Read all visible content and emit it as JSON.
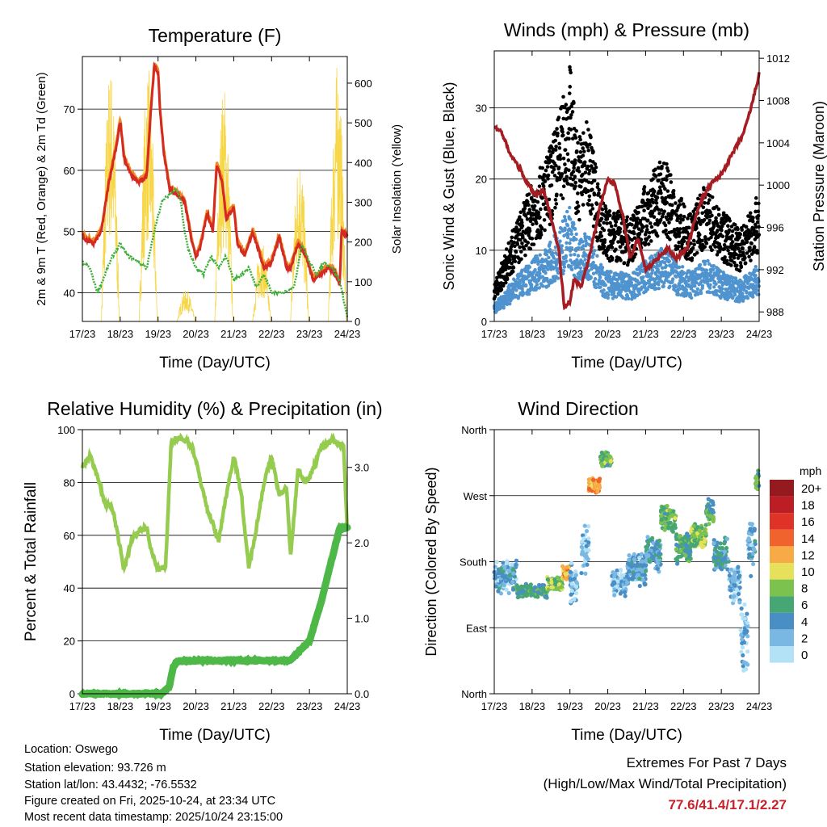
{
  "footer": {
    "location": "Location: Oswego",
    "elevation": "Station elevation: 93.726 m",
    "latlon": "Station lat/lon: 43.4432; -76.5532",
    "created": "Figure created on Fri, 2025-10-24, at 23:34 UTC",
    "recent": "Most recent data timestamp: 2025/10/24 23:15:00",
    "extremes_title": "Extremes For Past 7 Days",
    "extremes_sub": "(High/Low/Max Wind/Total Precipitation)",
    "extremes_values": "77.6/41.4/17.1/2.27",
    "extremes_color": "#c8232c"
  },
  "chart_data": [
    {
      "type": "line",
      "title": "Temperature (F)",
      "xlabel": "Time (Day/UTC)",
      "ylabel": "2m & 9m T (Red, Orange) & 2m Td (Green)",
      "ylabel_right": "Solar Insolation (Yellow)",
      "xticks": [
        "17/23",
        "18/23",
        "19/23",
        "20/23",
        "21/23",
        "22/23",
        "23/23",
        "24/23"
      ],
      "xlim": [
        0,
        7
      ],
      "ylim": [
        35.3,
        78.6
      ],
      "yticks": [
        40,
        50,
        60,
        70
      ],
      "ylim_right": [
        0,
        667
      ],
      "yticks_right": [
        0,
        100,
        200,
        300,
        400,
        500,
        600
      ],
      "series": [
        {
          "name": "2m T",
          "color": "#d42a22",
          "points": [
            [
              0,
              49
            ],
            [
              0.3,
              48
            ],
            [
              0.5,
              50
            ],
            [
              0.7,
              58
            ],
            [
              0.9,
              64
            ],
            [
              1.0,
              68
            ],
            [
              1.1,
              62
            ],
            [
              1.3,
              59
            ],
            [
              1.5,
              58
            ],
            [
              1.7,
              59
            ],
            [
              1.8,
              69
            ],
            [
              1.9,
              77
            ],
            [
              2.0,
              76
            ],
            [
              2.05,
              70
            ],
            [
              2.15,
              63
            ],
            [
              2.3,
              57
            ],
            [
              2.5,
              56
            ],
            [
              2.7,
              55
            ],
            [
              2.9,
              48
            ],
            [
              3.0,
              46
            ],
            [
              3.1,
              47
            ],
            [
              3.3,
              53
            ],
            [
              3.45,
              50
            ],
            [
              3.55,
              61
            ],
            [
              3.7,
              58
            ],
            [
              3.8,
              52
            ],
            [
              4.0,
              54
            ],
            [
              4.1,
              48
            ],
            [
              4.3,
              46
            ],
            [
              4.5,
              50
            ],
            [
              4.6,
              48
            ],
            [
              4.8,
              44
            ],
            [
              5.0,
              45
            ],
            [
              5.2,
              49
            ],
            [
              5.4,
              44
            ],
            [
              5.5,
              44
            ],
            [
              5.7,
              48
            ],
            [
              5.9,
              46
            ],
            [
              6.1,
              42
            ],
            [
              6.3,
              43
            ],
            [
              6.5,
              44
            ],
            [
              6.7,
              43
            ],
            [
              6.8,
              41
            ],
            [
              6.85,
              50
            ],
            [
              7,
              49
            ]
          ]
        },
        {
          "name": "9m T",
          "color": "#f08a24",
          "offset": 0.5
        },
        {
          "name": "2m Td",
          "color": "#3fae3a",
          "points": [
            [
              0,
              45
            ],
            [
              0.2,
              44
            ],
            [
              0.4,
              40
            ],
            [
              0.6,
              43
            ],
            [
              0.8,
              46
            ],
            [
              1.0,
              48
            ],
            [
              1.2,
              46
            ],
            [
              1.5,
              45
            ],
            [
              1.7,
              44
            ],
            [
              1.9,
              50
            ],
            [
              2.1,
              55
            ],
            [
              2.3,
              56
            ],
            [
              2.5,
              57
            ],
            [
              2.6,
              55
            ],
            [
              2.7,
              50
            ],
            [
              2.8,
              47
            ],
            [
              3.0,
              44
            ],
            [
              3.2,
              43
            ],
            [
              3.4,
              46
            ],
            [
              3.6,
              44
            ],
            [
              3.8,
              46
            ],
            [
              4.0,
              42
            ],
            [
              4.2,
              43
            ],
            [
              4.4,
              44
            ],
            [
              4.6,
              41
            ],
            [
              4.8,
              43
            ],
            [
              5.0,
              40
            ],
            [
              5.3,
              40
            ],
            [
              5.6,
              41
            ],
            [
              5.8,
              48
            ],
            [
              6.0,
              45
            ],
            [
              6.2,
              43
            ],
            [
              6.4,
              45
            ],
            [
              6.6,
              44
            ],
            [
              6.8,
              42
            ],
            [
              7,
              36
            ]
          ]
        },
        {
          "name": "Solar Insolation",
          "color": "#f7d648",
          "axis": "right",
          "daily_peaks": [
            650,
            640,
            80,
            600,
            200,
            430,
            650
          ]
        }
      ]
    },
    {
      "type": "scatter",
      "title": "Winds (mph) & Pressure (mb)",
      "xlabel": "Time (Day/UTC)",
      "ylabel": "Sonic Wind & Gust (Blue, Black)",
      "ylabel_right": "Station Pressure (Maroon)",
      "xticks": [
        "17/23",
        "18/23",
        "19/23",
        "20/23",
        "21/23",
        "22/23",
        "23/23",
        "24/23"
      ],
      "xlim": [
        0,
        7
      ],
      "ylim": [
        0,
        38
      ],
      "yticks": [
        0,
        10,
        20,
        30
      ],
      "ylim_right": [
        987.1,
        1012.7
      ],
      "yticks_right": [
        988,
        992,
        996,
        1000,
        1004,
        1008,
        1012
      ],
      "series": [
        {
          "name": "Gust",
          "color": "#000000",
          "points": [
            [
              0,
              4
            ],
            [
              0.5,
              10
            ],
            [
              1,
              15
            ],
            [
              1.4,
              18
            ],
            [
              1.8,
              24
            ],
            [
              2.0,
              28
            ],
            [
              2.2,
              20
            ],
            [
              2.5,
              22
            ],
            [
              2.8,
              14
            ],
            [
              3.0,
              12
            ],
            [
              3.3,
              12
            ],
            [
              3.6,
              11
            ],
            [
              4.0,
              15
            ],
            [
              4.5,
              18
            ],
            [
              4.8,
              14
            ],
            [
              5.2,
              12
            ],
            [
              5.6,
              15
            ],
            [
              6.0,
              12
            ],
            [
              6.5,
              10
            ],
            [
              7,
              14
            ]
          ]
        },
        {
          "name": "Sonic Wind",
          "color": "#4f93cf",
          "ratio": 0.45
        },
        {
          "name": "Station Pressure",
          "color": "#a51d22",
          "axis": "right",
          "points": [
            [
              0,
              1005.5
            ],
            [
              0.2,
              1005
            ],
            [
              0.4,
              1003
            ],
            [
              0.6,
              1002
            ],
            [
              0.9,
              1000
            ],
            [
              1.1,
              999
            ],
            [
              1.3,
              999.5
            ],
            [
              1.5,
              997
            ],
            [
              1.7,
              994
            ],
            [
              1.85,
              988.5
            ],
            [
              2.0,
              989
            ],
            [
              2.1,
              991
            ],
            [
              2.3,
              990.5
            ],
            [
              2.5,
              993
            ],
            [
              2.8,
              998
            ],
            [
              3.0,
              1000.5
            ],
            [
              3.2,
              1000
            ],
            [
              3.4,
              997
            ],
            [
              3.6,
              993
            ],
            [
              3.8,
              995
            ],
            [
              4.0,
              992
            ],
            [
              4.3,
              993
            ],
            [
              4.6,
              994
            ],
            [
              4.8,
              993
            ],
            [
              5.1,
              994
            ],
            [
              5.4,
              998
            ],
            [
              5.7,
              1000
            ],
            [
              6.0,
              1001
            ],
            [
              6.3,
              1003
            ],
            [
              6.6,
              1005
            ],
            [
              6.8,
              1007.5
            ],
            [
              7,
              1010.5
            ]
          ]
        }
      ]
    },
    {
      "type": "line",
      "title": "Relative Humidity (%) & Precipitation (in)",
      "xlabel": "Time (Day/UTC)",
      "ylabel": "Percent & Total Rainfall",
      "xticks": [
        "17/23",
        "18/23",
        "19/23",
        "20/23",
        "21/23",
        "22/23",
        "23/23",
        "24/23"
      ],
      "xlim": [
        0,
        7
      ],
      "ylim": [
        0,
        100
      ],
      "yticks": [
        0,
        20,
        40,
        60,
        80,
        100
      ],
      "ylim_right": [
        0,
        3.5
      ],
      "yticks_right": [
        "0.0",
        "1.0",
        "2.0",
        "3.0"
      ],
      "series": [
        {
          "name": "Relative Humidity",
          "color": "#95cb4f",
          "points": [
            [
              0,
              86
            ],
            [
              0.2,
              90
            ],
            [
              0.4,
              82
            ],
            [
              0.6,
              72
            ],
            [
              0.8,
              70
            ],
            [
              1.0,
              55
            ],
            [
              1.1,
              47
            ],
            [
              1.3,
              58
            ],
            [
              1.5,
              62
            ],
            [
              1.7,
              63
            ],
            [
              1.8,
              55
            ],
            [
              2.0,
              47
            ],
            [
              2.2,
              48
            ],
            [
              2.35,
              96
            ],
            [
              2.6,
              97
            ],
            [
              2.9,
              94
            ],
            [
              3.1,
              82
            ],
            [
              3.3,
              70
            ],
            [
              3.5,
              62
            ],
            [
              3.6,
              58
            ],
            [
              3.8,
              75
            ],
            [
              4.0,
              90
            ],
            [
              4.2,
              76
            ],
            [
              4.3,
              60
            ],
            [
              4.4,
              48
            ],
            [
              4.6,
              63
            ],
            [
              4.8,
              80
            ],
            [
              5.0,
              90
            ],
            [
              5.2,
              75
            ],
            [
              5.4,
              78
            ],
            [
              5.5,
              52
            ],
            [
              5.7,
              85
            ],
            [
              5.9,
              80
            ],
            [
              6.1,
              85
            ],
            [
              6.3,
              93
            ],
            [
              6.6,
              96
            ],
            [
              6.9,
              94
            ],
            [
              7.0,
              62
            ]
          ]
        },
        {
          "name": "Total Precipitation",
          "color": "#4db848",
          "axis": "right",
          "points": [
            [
              0,
              0
            ],
            [
              2.1,
              0
            ],
            [
              2.3,
              0.1
            ],
            [
              2.4,
              0.35
            ],
            [
              2.5,
              0.43
            ],
            [
              3,
              0.44
            ],
            [
              5.5,
              0.44
            ],
            [
              5.7,
              0.55
            ],
            [
              6.0,
              0.7
            ],
            [
              6.3,
              1.2
            ],
            [
              6.5,
              1.6
            ],
            [
              6.7,
              2.0
            ],
            [
              6.8,
              2.2
            ],
            [
              7,
              2.2
            ]
          ]
        }
      ]
    },
    {
      "type": "scatter",
      "title": "Wind Direction",
      "xlabel": "Time (Day/UTC)",
      "ylabel": "Direction (Colored By Speed)",
      "xticks": [
        "17/23",
        "18/23",
        "19/23",
        "20/23",
        "21/23",
        "22/23",
        "23/23",
        "24/23"
      ],
      "xlim": [
        0,
        7
      ],
      "ylim": [
        0,
        360
      ],
      "yticks": [
        {
          "v": 0,
          "label": "North"
        },
        {
          "v": 90,
          "label": "East"
        },
        {
          "v": 180,
          "label": "South"
        },
        {
          "v": 270,
          "label": "West"
        },
        {
          "v": 360,
          "label": "North"
        }
      ],
      "clusters": [
        [
          0,
          0.6,
          160,
          25,
          4
        ],
        [
          0.6,
          1.4,
          140,
          10,
          7
        ],
        [
          1.4,
          1.8,
          150,
          10,
          9
        ],
        [
          1.8,
          2.0,
          165,
          10,
          13
        ],
        [
          2.0,
          2.2,
          150,
          40,
          3
        ],
        [
          2.3,
          2.5,
          200,
          40,
          3
        ],
        [
          2.5,
          2.8,
          285,
          12,
          13
        ],
        [
          2.8,
          3.1,
          320,
          12,
          8
        ],
        [
          3.1,
          3.5,
          150,
          20,
          3
        ],
        [
          3.5,
          4.0,
          170,
          25,
          4
        ],
        [
          4.0,
          4.4,
          190,
          25,
          5
        ],
        [
          4.4,
          4.8,
          240,
          20,
          8
        ],
        [
          4.8,
          5.2,
          200,
          25,
          7
        ],
        [
          5.2,
          5.6,
          215,
          20,
          9
        ],
        [
          5.6,
          5.8,
          250,
          20,
          7
        ],
        [
          5.8,
          6.2,
          190,
          25,
          5
        ],
        [
          6.2,
          6.5,
          150,
          30,
          3
        ],
        [
          6.5,
          6.7,
          80,
          60,
          3
        ],
        [
          6.7,
          6.9,
          200,
          40,
          4
        ],
        [
          6.9,
          7,
          290,
          15,
          8
        ]
      ],
      "legend": {
        "title": "mph",
        "labels": [
          "20+",
          "18",
          "16",
          "14",
          "12",
          "10",
          "8",
          "6",
          "4",
          "2",
          "0"
        ],
        "colors": [
          "#951a1d",
          "#bd1d24",
          "#de3326",
          "#f1632d",
          "#f8aa47",
          "#e6e05a",
          "#7bc24f",
          "#47a774",
          "#4a8ec6",
          "#7ab8e4",
          "#b3e2f7"
        ]
      }
    }
  ]
}
